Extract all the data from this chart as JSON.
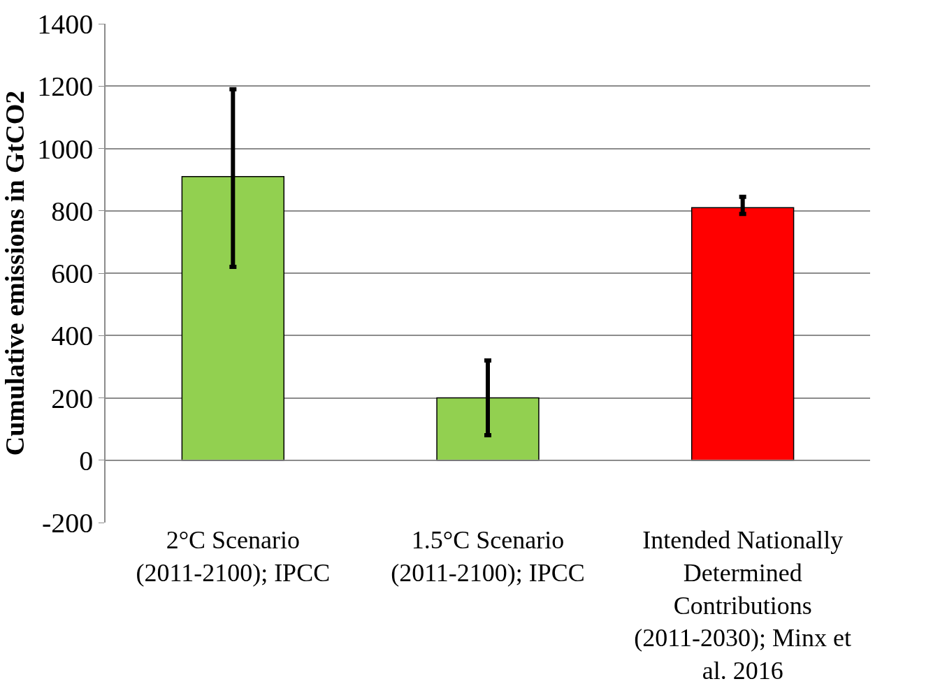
{
  "chart_data": {
    "type": "bar",
    "ylabel": "Cumulative emissions in GtCO2",
    "categories": [
      "2°C Scenario (2011-2100); IPCC",
      "1.5°C Scenario (2011-2100); IPCC",
      "Intended Nationally Determined Contributions (2011-2030); Minx et al. 2016"
    ],
    "values": [
      910,
      200,
      810
    ],
    "colors": [
      "#92d050",
      "#92d050",
      "#ff0000"
    ],
    "errors": [
      [
        620,
        1190
      ],
      [
        80,
        320
      ],
      [
        790,
        845
      ]
    ],
    "ylim": [
      -200,
      1400
    ],
    "yticks": [
      -200,
      0,
      200,
      400,
      600,
      800,
      1000,
      1200,
      1400
    ],
    "grid": "y"
  }
}
